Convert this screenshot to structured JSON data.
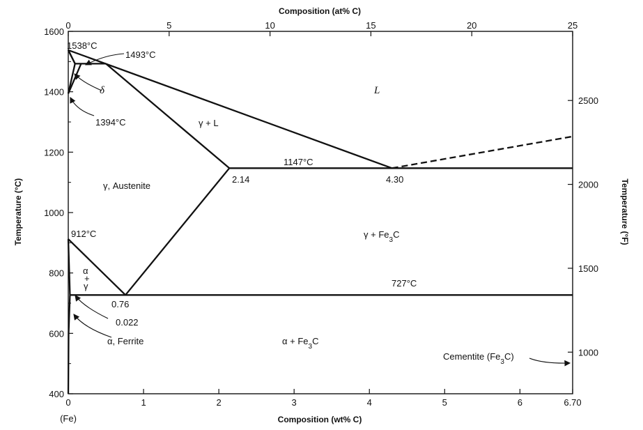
{
  "chart_data": {
    "type": "line",
    "x_bottom": {
      "label": "Composition (wt% C)",
      "unit": "wt% C",
      "ticks": [
        "0",
        "1",
        "2",
        "3",
        "4",
        "5",
        "6",
        "6.70"
      ],
      "tick_values": [
        0,
        1,
        2,
        3,
        4,
        5,
        6,
        6.7
      ],
      "range": [
        0,
        6.7
      ]
    },
    "x_bottom_sublabel": "(Fe)",
    "x_top": {
      "label": "Composition (at% C)",
      "ticks": [
        "0",
        "5",
        "10",
        "15",
        "20",
        "25"
      ],
      "tick_values": [
        0,
        5,
        10,
        15,
        20,
        25
      ]
    },
    "y_left": {
      "label": "Temperature (°C)",
      "ticks": [
        "400",
        "600",
        "800",
        "1000",
        "1200",
        "1400",
        "1600"
      ],
      "tick_values": [
        400,
        600,
        800,
        1000,
        1200,
        1400,
        1600
      ],
      "range": [
        400,
        1600
      ]
    },
    "y_right": {
      "label": "Temperature (°F)",
      "ticks": [
        "1000",
        "1500",
        "2000",
        "2500"
      ],
      "tick_values": [
        1000,
        1500,
        2000,
        2500
      ]
    },
    "series": [
      {
        "style": "solid",
        "points": [
          [
            0,
            1538
          ],
          [
            4.3,
            1147
          ]
        ]
      },
      {
        "style": "dashed",
        "points": [
          [
            4.3,
            1147
          ],
          [
            6.7,
            1252
          ]
        ]
      },
      {
        "style": "solid",
        "points": [
          [
            0.5,
            1493
          ],
          [
            2.14,
            1147
          ]
        ]
      },
      {
        "style": "solid",
        "points": [
          [
            0,
            1538
          ],
          [
            0.09,
            1493
          ]
        ]
      },
      {
        "style": "solid",
        "points": [
          [
            0,
            1538
          ],
          [
            0.09,
            1493
          ],
          [
            0,
            1394
          ]
        ]
      },
      {
        "style": "solid",
        "points": [
          [
            0.09,
            1493
          ],
          [
            0.5,
            1493
          ]
        ]
      },
      {
        "style": "solid",
        "points": [
          [
            0.17,
            1493
          ],
          [
            0,
            1394
          ]
        ]
      },
      {
        "style": "solid",
        "points": [
          [
            2.14,
            1147
          ],
          [
            6.7,
            1147
          ]
        ]
      },
      {
        "style": "solid",
        "points": [
          [
            0.76,
            727
          ],
          [
            2.14,
            1147
          ]
        ]
      },
      {
        "style": "solid",
        "points": [
          [
            0,
            912
          ],
          [
            0.76,
            727
          ]
        ]
      },
      {
        "style": "solid",
        "points": [
          [
            0,
            912
          ],
          [
            0.022,
            727
          ]
        ]
      },
      {
        "style": "solid",
        "points": [
          [
            0.022,
            727
          ],
          [
            6.7,
            727
          ]
        ]
      },
      {
        "style": "solid",
        "points": [
          [
            0.022,
            727
          ],
          [
            0.005,
            600
          ],
          [
            0,
            400
          ]
        ]
      }
    ],
    "annotations": [
      {
        "text": "1538°C"
      },
      {
        "text": "1493°C"
      },
      {
        "text": "1394°C"
      },
      {
        "text": "1147°C"
      },
      {
        "text": "912°C"
      },
      {
        "text": "727°C"
      },
      {
        "text": "2.14"
      },
      {
        "text": "4.30"
      },
      {
        "text": "0.76"
      },
      {
        "text": "0.022"
      },
      {
        "text": "Cementite (Fe3C)"
      }
    ],
    "regions": [
      {
        "text": "L"
      },
      {
        "text": "γ + L"
      },
      {
        "text": "δ"
      },
      {
        "text": "γ, Austenite"
      },
      {
        "text": "γ + Fe3C"
      },
      {
        "text": "α + Fe3C"
      },
      {
        "text": "α, Ferrite"
      },
      {
        "text": "α"
      },
      {
        "text": "+"
      },
      {
        "text": "γ"
      }
    ],
    "grid": false
  }
}
